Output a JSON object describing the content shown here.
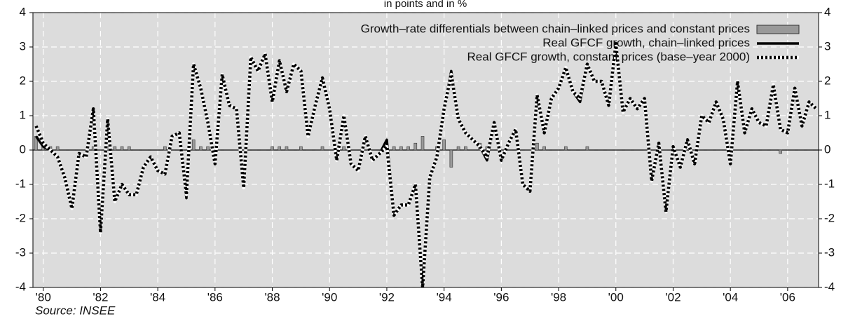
{
  "chart_data": {
    "type": "line",
    "subtitle": "in points and in %",
    "source": "Source: INSEE",
    "x": [
      1979.75,
      1980,
      1980.25,
      1980.5,
      1980.75,
      1981,
      1981.25,
      1981.5,
      1981.75,
      1982,
      1982.25,
      1982.5,
      1982.75,
      1983,
      1983.25,
      1983.5,
      1983.75,
      1984,
      1984.25,
      1984.5,
      1984.75,
      1985,
      1985.25,
      1985.5,
      1985.75,
      1986,
      1986.25,
      1986.5,
      1986.75,
      1987,
      1987.25,
      1987.5,
      1987.75,
      1988,
      1988.25,
      1988.5,
      1988.75,
      1989,
      1989.25,
      1989.5,
      1989.75,
      1990,
      1990.25,
      1990.5,
      1990.75,
      1991,
      1991.25,
      1991.5,
      1991.75,
      1992,
      1992.25,
      1992.5,
      1992.75,
      1993,
      1993.25,
      1993.5,
      1993.75,
      1994,
      1994.25,
      1994.5,
      1994.75,
      1995,
      1995.25,
      1995.5,
      1995.75,
      1996,
      1996.25,
      1996.5,
      1996.75,
      1997,
      1997.25,
      1997.5,
      1997.75,
      1998,
      1998.25,
      1998.5,
      1998.75,
      1999,
      1999.25,
      1999.5,
      1999.75,
      2000,
      2000.25,
      2000.5,
      2000.75,
      2001,
      2001.25,
      2001.5,
      2001.75,
      2002,
      2002.25,
      2002.5,
      2002.75,
      2003,
      2003.25,
      2003.5,
      2003.75,
      2004,
      2004.25,
      2004.5,
      2004.75,
      2005,
      2005.25,
      2005.5,
      2005.75,
      2006,
      2006.25,
      2006.5,
      2006.75,
      2007
    ],
    "series": [
      {
        "name": "Growth–rate differentials between chain–linked prices and constant prices",
        "type": "bar",
        "color": "#999999",
        "values": [
          0.4,
          0.2,
          0.1,
          0.1,
          0,
          0,
          0,
          0,
          0.1,
          0,
          0.1,
          0.1,
          0.1,
          0.1,
          0,
          0,
          0,
          0,
          0.1,
          0,
          0,
          0,
          0.3,
          0.1,
          0.1,
          0,
          0,
          0,
          0,
          0,
          0,
          0,
          0,
          0.1,
          0.1,
          0.1,
          0,
          0.1,
          0,
          0,
          0.1,
          0,
          0,
          0.1,
          0,
          0,
          0,
          0,
          0,
          0,
          0.1,
          0.1,
          0.1,
          0.2,
          0.4,
          0,
          0.1,
          0.3,
          -0.5,
          0.1,
          0.1,
          0,
          0.2,
          0.1,
          0,
          0,
          0,
          0,
          0,
          0,
          0.2,
          0.1,
          0,
          0,
          0.1,
          0,
          0,
          0.1,
          0,
          0,
          0,
          0,
          0,
          0,
          0,
          0,
          0,
          0,
          0,
          0,
          0,
          0,
          0,
          0,
          0,
          0,
          0,
          0,
          0,
          0,
          0,
          0,
          0,
          0,
          -0.1,
          0,
          0,
          0,
          0,
          0
        ]
      },
      {
        "name": "Real GFCF growth, chain–linked prices",
        "type": "line",
        "style": "solid",
        "color": "#000000",
        "values": [
          0.4,
          0.1,
          0.0,
          -0.2,
          -0.8,
          -1.7,
          -0.1,
          -0.2,
          1.2,
          -2.4,
          0.9,
          -1.5,
          -1.0,
          -1.3,
          -1.3,
          -0.5,
          -0.2,
          -0.6,
          -0.7,
          0.4,
          0.5,
          -1.4,
          2.5,
          1.8,
          0.8,
          -0.4,
          2.2,
          1.3,
          1.2,
          -1.1,
          2.7,
          2.3,
          2.8,
          1.4,
          2.6,
          1.7,
          2.5,
          2.3,
          0.4,
          1.3,
          2.1,
          1.2,
          -0.3,
          1.0,
          -0.4,
          -0.6,
          0.4,
          -0.3,
          -0.1,
          0.3,
          -1.9,
          -1.6,
          -1.6,
          -1.0,
          -4.0,
          -0.8,
          -0.2,
          1.2,
          2.3,
          0.9,
          0.5,
          0.3,
          0.1,
          -0.3,
          0.8,
          -0.3,
          0.2,
          0.6,
          -1.0,
          -1.2,
          1.6,
          0.5,
          1.5,
          1.8,
          2.4,
          1.7,
          1.4,
          2.5,
          2.0,
          2.0,
          1.3,
          3.1,
          1.1,
          1.5,
          1.2,
          1.5,
          -0.9,
          0.2,
          -1.8,
          0.1,
          -0.5,
          0.3,
          -0.4,
          1.0,
          0.8,
          1.4,
          0.9,
          -0.4,
          2.0,
          0.5,
          1.2,
          0.8,
          0.7,
          1.9,
          0.6,
          0.5,
          1.8,
          0.7,
          1.4,
          1.2
        ]
      },
      {
        "name": "Real GFCF growth, constant prices (base–year 2000)",
        "type": "line",
        "style": "dotted",
        "color": "#000000",
        "values": [
          0.7,
          0.2,
          0.0,
          -0.2,
          -0.8,
          -1.7,
          -0.1,
          -0.2,
          1.2,
          -2.4,
          0.9,
          -1.5,
          -1.0,
          -1.3,
          -1.3,
          -0.5,
          -0.2,
          -0.6,
          -0.7,
          0.4,
          0.5,
          -1.3,
          2.5,
          1.8,
          0.8,
          -0.4,
          2.2,
          1.3,
          1.2,
          -1.1,
          2.7,
          2.3,
          2.8,
          1.4,
          2.6,
          1.7,
          2.5,
          2.3,
          0.4,
          1.3,
          2.1,
          1.2,
          -0.3,
          1.0,
          -0.4,
          -0.6,
          0.4,
          -0.3,
          -0.1,
          0.1,
          -1.9,
          -1.6,
          -1.6,
          -1.0,
          -4.0,
          -0.8,
          -0.2,
          1.2,
          2.2,
          0.9,
          0.5,
          0.3,
          0.1,
          -0.2,
          0.8,
          -0.3,
          0.2,
          0.6,
          -1.0,
          -1.2,
          1.6,
          0.5,
          1.5,
          1.8,
          2.4,
          1.7,
          1.5,
          2.5,
          2.0,
          2.0,
          1.3,
          3.1,
          1.1,
          1.5,
          1.2,
          1.5,
          -0.9,
          0.2,
          -1.8,
          0.1,
          -0.5,
          0.3,
          -0.4,
          1.0,
          0.8,
          1.4,
          0.9,
          -0.4,
          2.0,
          0.5,
          1.2,
          0.8,
          0.7,
          1.9,
          0.6,
          0.5,
          1.8,
          0.7,
          1.4,
          1.2
        ]
      }
    ],
    "xlim": [
      1979.64,
      2007.08
    ],
    "xticks": [
      {
        "value": 1980,
        "label": "'80"
      },
      {
        "value": 1982,
        "label": "'82"
      },
      {
        "value": 1984,
        "label": "'84"
      },
      {
        "value": 1986,
        "label": "'86"
      },
      {
        "value": 1988,
        "label": "'88"
      },
      {
        "value": 1990,
        "label": "'90"
      },
      {
        "value": 1992,
        "label": "'92"
      },
      {
        "value": 1994,
        "label": "'94"
      },
      {
        "value": 1996,
        "label": "'96"
      },
      {
        "value": 1998,
        "label": "'98"
      },
      {
        "value": 2000,
        "label": "'00"
      },
      {
        "value": 2002,
        "label": "'02"
      },
      {
        "value": 2004,
        "label": "'04"
      },
      {
        "value": 2006,
        "label": "'06"
      }
    ],
    "ylim": [
      -4,
      4
    ],
    "yticks": [
      -4,
      -3,
      -2,
      -1,
      0,
      1,
      2,
      3,
      4
    ],
    "y2lim": [
      -4,
      4
    ],
    "y2ticks": [
      -4,
      -3,
      -2,
      -1,
      0,
      1,
      2,
      3,
      4
    ],
    "grid": true,
    "legend": "upper right"
  }
}
